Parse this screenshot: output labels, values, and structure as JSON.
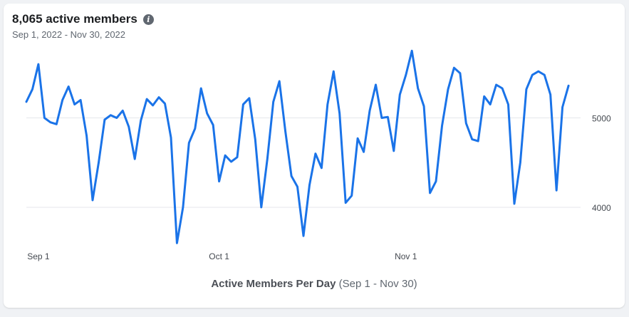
{
  "card": {
    "title": "8,065 active members",
    "subtitle": "Sep 1, 2022 - Nov 30, 2022",
    "info_icon": "info-icon",
    "footer_label": "Active Members Per Day",
    "footer_range": "(Sep 1 - Nov 30)"
  },
  "chart_data": {
    "type": "line",
    "title": "8,065 active members",
    "subtitle": "Sep 1, 2022 - Nov 30, 2022",
    "xlabel": "Active Members Per Day (Sep 1 - Nov 30)",
    "ylabel": "",
    "ylim": [
      3570,
      5840
    ],
    "xlim": [
      "2022-08-30",
      "2022-11-30"
    ],
    "yticks": [
      4000,
      5000
    ],
    "xticks": [
      {
        "date": "2022-09-01",
        "label": "Sep 1"
      },
      {
        "date": "2022-10-01",
        "label": "Oct 1"
      },
      {
        "date": "2022-11-01",
        "label": "Nov 1"
      }
    ],
    "grid": true,
    "color": "#1a73e8",
    "start_date": "2022-08-30",
    "values": [
      5180,
      5320,
      5600,
      5000,
      4950,
      4930,
      5200,
      5350,
      5150,
      5200,
      4800,
      4080,
      4500,
      4980,
      5030,
      5000,
      5080,
      4900,
      4540,
      4970,
      5210,
      5140,
      5230,
      5160,
      4780,
      3600,
      4000,
      4720,
      4880,
      5330,
      5050,
      4920,
      4290,
      4580,
      4510,
      4560,
      5150,
      5220,
      4760,
      4000,
      4540,
      5180,
      5410,
      4850,
      4350,
      4230,
      3680,
      4250,
      4600,
      4440,
      5150,
      5520,
      5050,
      4050,
      4130,
      4770,
      4620,
      5080,
      5370,
      5000,
      5010,
      4630,
      5260,
      5480,
      5750,
      5330,
      5130,
      4160,
      4290,
      4910,
      5320,
      5560,
      5500,
      4940,
      4760,
      4740,
      5240,
      5150,
      5370,
      5330,
      5150,
      4040,
      4500,
      5320,
      5480,
      5520,
      5480,
      5260,
      4190,
      5120,
      5360
    ]
  }
}
